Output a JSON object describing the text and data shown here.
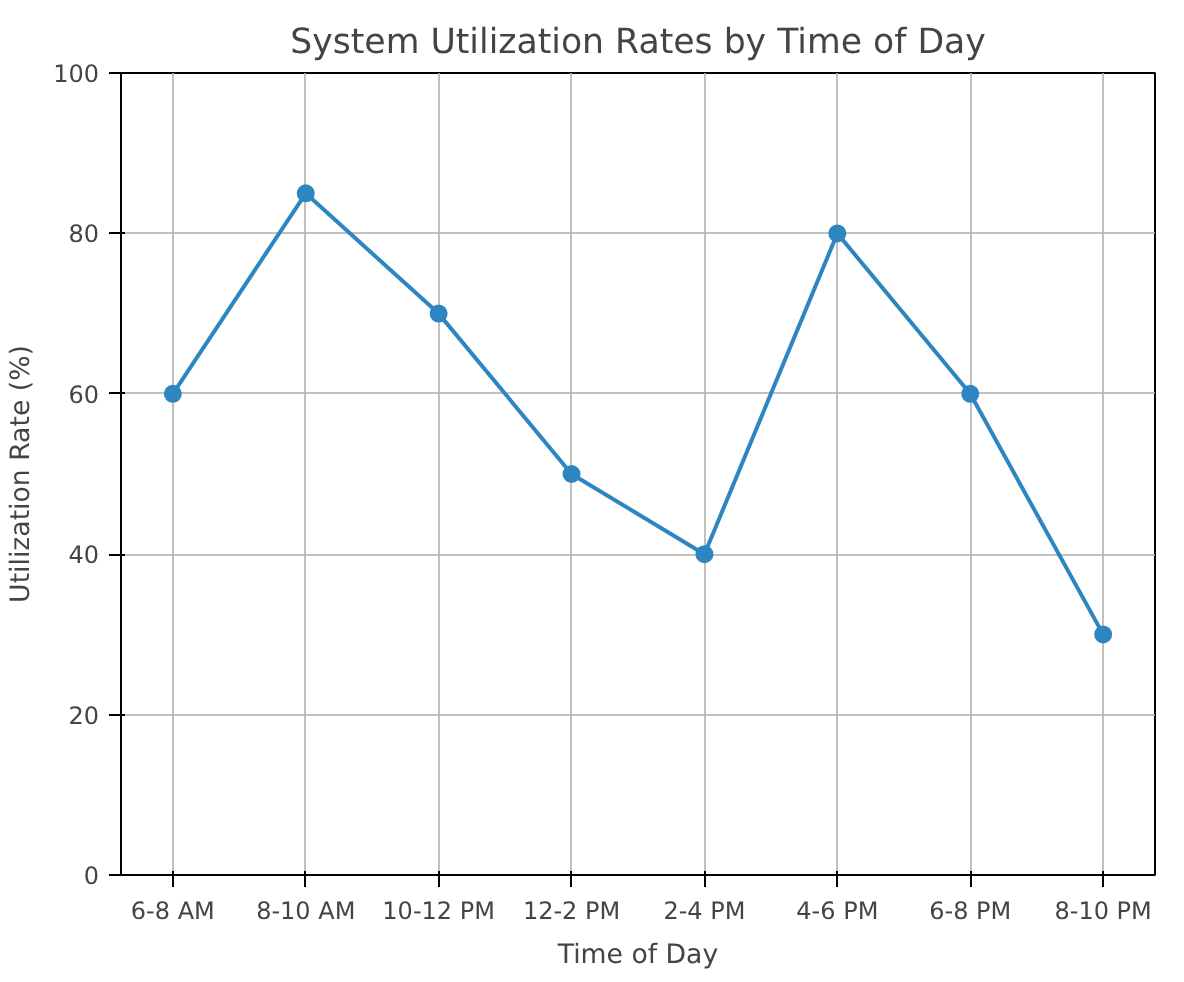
{
  "chart_data": {
    "type": "line",
    "title": "System Utilization Rates by Time of Day",
    "xlabel": "Time of Day",
    "ylabel": "Utilization Rate (%)",
    "categories": [
      "6-8 AM",
      "8-10 AM",
      "10-12 PM",
      "12-2 PM",
      "2-4 PM",
      "4-6 PM",
      "6-8 PM",
      "8-10 PM"
    ],
    "series": [
      {
        "color": "#2e86c1",
        "values": [
          60,
          85,
          70,
          50,
          40,
          80,
          60,
          30
        ]
      }
    ],
    "ylim": [
      0,
      100
    ],
    "yticks": [
      0,
      20,
      40,
      60,
      80,
      100
    ],
    "grid": true,
    "marker": "circle",
    "line_style": "solid"
  }
}
